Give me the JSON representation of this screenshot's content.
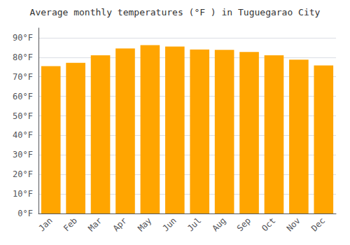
{
  "chart_data": {
    "type": "bar",
    "title": "Average monthly temperatures (°F ) in Tuguegarao City",
    "categories": [
      "Jan",
      "Feb",
      "Mar",
      "Apr",
      "May",
      "Jun",
      "Jul",
      "Aug",
      "Sep",
      "Oct",
      "Nov",
      "Dec"
    ],
    "values": [
      75.5,
      77.2,
      81.0,
      84.5,
      86.2,
      85.5,
      84.0,
      83.8,
      82.7,
      81.0,
      78.8,
      75.8
    ],
    "color": "#FFA500",
    "ylim": [
      0,
      95
    ],
    "yticks": [
      {
        "value": 0,
        "label": "0°F"
      },
      {
        "value": 10,
        "label": "10°F"
      },
      {
        "value": 20,
        "label": "20°F"
      },
      {
        "value": 30,
        "label": "30°F"
      },
      {
        "value": 40,
        "label": "40°F"
      },
      {
        "value": 50,
        "label": "50°F"
      },
      {
        "value": 60,
        "label": "60°F"
      },
      {
        "value": 70,
        "label": "70°F"
      },
      {
        "value": 80,
        "label": "80°F"
      },
      {
        "value": 90,
        "label": "90°F"
      }
    ],
    "grid": true
  }
}
